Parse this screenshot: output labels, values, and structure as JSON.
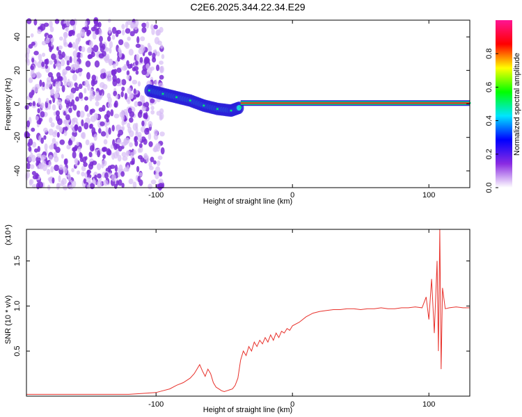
{
  "title": "C2E6.2025.344.22.34.E29",
  "chart_data": [
    {
      "type": "heatmap",
      "xlabel": "Height of straight line (km)",
      "ylabel": "Frequency (Hz)",
      "xlim": [
        -195,
        130
      ],
      "ylim": [
        -50,
        50
      ],
      "xticks": [
        -100,
        0,
        100
      ],
      "yticks": [
        -40,
        -20,
        0,
        20,
        40
      ],
      "grid": false,
      "colorbar": {
        "label": "Normalized spectral amplitude",
        "range": [
          0.0,
          1.0
        ],
        "ticks": [
          0.0,
          0.2,
          0.4,
          0.6,
          0.8
        ],
        "colors": [
          "#ffffff",
          "#8a2be2",
          "#0000ff",
          "#00e5ff",
          "#00ff00",
          "#ffff00",
          "#ff0000",
          "#ff1493"
        ]
      },
      "scatter_region": {
        "x": [
          -195,
          -95
        ],
        "y": [
          -50,
          50
        ],
        "amplitude": 0.15
      },
      "ridge_points": [
        {
          "x": -105,
          "y": 8
        },
        {
          "x": -95,
          "y": 6
        },
        {
          "x": -85,
          "y": 4
        },
        {
          "x": -75,
          "y": 2
        },
        {
          "x": -65,
          "y": -1
        },
        {
          "x": -55,
          "y": -3
        },
        {
          "x": -45,
          "y": -4
        },
        {
          "x": -38,
          "y": -2
        },
        {
          "x": -30,
          "y": 0
        },
        {
          "x": -20,
          "y": 0.5
        },
        {
          "x": -10,
          "y": 0.5
        },
        {
          "x": 0,
          "y": 0.5
        },
        {
          "x": 50,
          "y": 0.5
        },
        {
          "x": 100,
          "y": 0.5
        },
        {
          "x": 130,
          "y": 0.5
        }
      ],
      "carrier_line": {
        "x": [
          -38,
          130
        ],
        "y": 0.5,
        "amplitude": 1.0
      }
    },
    {
      "type": "line",
      "xlabel": "Height of straight line (km)",
      "ylabel": "SNR (10 * v/v)",
      "yscale_label": "(x10⁴)",
      "xlim": [
        -195,
        130
      ],
      "ylim": [
        0.0,
        1.85
      ],
      "xticks": [
        -100,
        0,
        100
      ],
      "yticks": [
        0.5,
        1.0,
        1.5
      ],
      "grid": false,
      "series": [
        {
          "color": "#e8302a",
          "x": [
            -195,
            -180,
            -160,
            -140,
            -120,
            -110,
            -100,
            -95,
            -90,
            -85,
            -80,
            -75,
            -72,
            -70,
            -68,
            -66,
            -64,
            -62,
            -60,
            -58,
            -56,
            -54,
            -52,
            -50,
            -48,
            -46,
            -44,
            -42,
            -40,
            -38,
            -36,
            -34,
            -32,
            -30,
            -28,
            -26,
            -24,
            -22,
            -20,
            -18,
            -16,
            -14,
            -12,
            -10,
            -8,
            -6,
            -4,
            -2,
            0,
            5,
            10,
            15,
            20,
            25,
            30,
            35,
            40,
            45,
            50,
            55,
            60,
            65,
            70,
            75,
            80,
            85,
            90,
            95,
            98,
            100,
            102,
            104,
            106,
            107,
            108,
            109,
            110,
            112,
            115,
            120,
            125,
            130
          ],
          "y": [
            0.02,
            0.02,
            0.02,
            0.02,
            0.02,
            0.03,
            0.04,
            0.06,
            0.08,
            0.12,
            0.15,
            0.2,
            0.25,
            0.3,
            0.35,
            0.28,
            0.22,
            0.3,
            0.25,
            0.15,
            0.1,
            0.08,
            0.06,
            0.05,
            0.06,
            0.07,
            0.08,
            0.12,
            0.2,
            0.4,
            0.5,
            0.45,
            0.55,
            0.5,
            0.6,
            0.55,
            0.62,
            0.58,
            0.65,
            0.6,
            0.68,
            0.62,
            0.7,
            0.65,
            0.72,
            0.7,
            0.75,
            0.73,
            0.78,
            0.82,
            0.88,
            0.92,
            0.94,
            0.95,
            0.96,
            0.96,
            0.97,
            0.97,
            0.96,
            0.97,
            0.97,
            0.98,
            0.97,
            0.97,
            0.98,
            0.98,
            0.99,
            0.98,
            1.1,
            0.85,
            1.3,
            0.7,
            1.5,
            0.5,
            1.85,
            0.3,
            1.2,
            0.97,
            0.98,
            0.99,
            0.98,
            0.98
          ]
        }
      ]
    }
  ]
}
